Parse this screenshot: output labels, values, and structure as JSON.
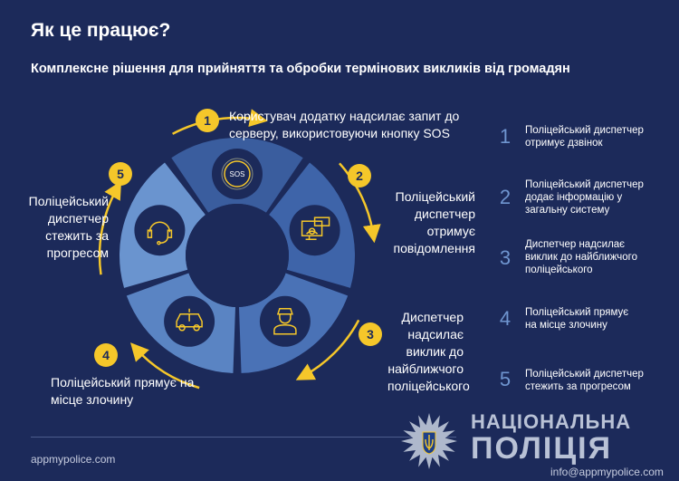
{
  "title": "Як це працює?",
  "subtitle": "Комплексне рішення для прийняття та обробки термінових викликів від громадян",
  "steps": [
    {
      "num": "1",
      "text": "Користувач додатку надсилає запит до серверу, використовуючи кнопку SOS",
      "icon": "sos-icon"
    },
    {
      "num": "2",
      "text": "Поліцейський диспетчер отримує повідомлення",
      "icon": "monitor-message-icon"
    },
    {
      "num": "3",
      "text": "Диспетчер надсилає виклик до найближчого поліцейського",
      "icon": "police-officer-icon"
    },
    {
      "num": "4",
      "text": "Поліцейський прямує на місце злочину",
      "icon": "police-car-icon"
    },
    {
      "num": "5",
      "text": "Поліцейський диспетчер стежить за прогресом",
      "icon": "headset-icon"
    }
  ],
  "sos_label": "SOS",
  "side_list": [
    {
      "num": "1",
      "text": "Поліцейський диспетчер отримує дзвінок"
    },
    {
      "num": "2",
      "text": "Поліцейський диспетчер додає інформацію у загальну систему"
    },
    {
      "num": "3",
      "text": "Диспетчер надсилає виклик до найближчого поліцейського"
    },
    {
      "num": "4",
      "text": "Поліцейський прямує на місце злочину"
    },
    {
      "num": "5",
      "text": "Поліцейський диспетчер стежить за прогресом"
    }
  ],
  "footer": {
    "site": "appmypolice.com",
    "email": "info@appmypolice.com",
    "brand_line1": "НАЦІОНАЛЬНА",
    "brand_line2": "ПОЛІЦІЯ"
  },
  "colors": {
    "background": "#1c2a5a",
    "accent": "#f5c72a",
    "list_number": "#6f95d0"
  }
}
